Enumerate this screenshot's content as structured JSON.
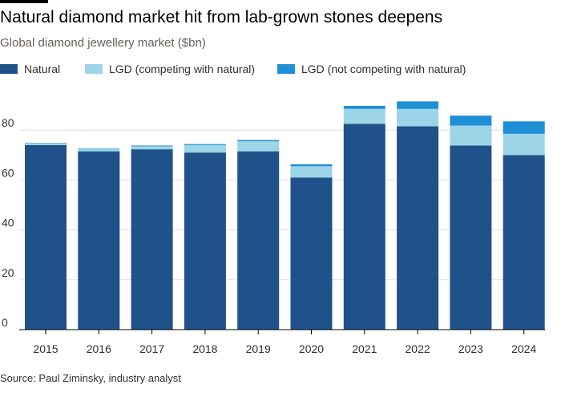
{
  "title": "Natural diamond market hit from lab-grown stones deepens",
  "subtitle": "Global diamond jewellery market ($bn)",
  "source": "Source: Paul Ziminsky, industry analyst",
  "colors": {
    "natural": "#1f5289",
    "lgd_competing": "#9cd4e8",
    "lgd_not_competing": "#1f8fd6",
    "grid": "#e3e0dd",
    "axis": "#000000",
    "tick_text": "#33302e"
  },
  "chart_data": {
    "type": "bar",
    "stacked": true,
    "title": "Natural diamond market hit from lab-grown stones deepens",
    "subtitle": "Global diamond jewellery market ($bn)",
    "xlabel": "",
    "ylabel": "",
    "ylim": [
      0,
      90
    ],
    "yticks": [
      0,
      20,
      40,
      60,
      80
    ],
    "grid": true,
    "legend_position": "top-left",
    "categories": [
      "2015",
      "2016",
      "2017",
      "2018",
      "2019",
      "2020",
      "2021",
      "2022",
      "2023",
      "2024"
    ],
    "series": [
      {
        "name": "Natural",
        "color_key": "natural",
        "values": [
          74,
          71.5,
          72.3,
          71,
          71.5,
          61,
          82.5,
          81.5,
          73.8,
          70
        ]
      },
      {
        "name": "LGD (competing with natural)",
        "color_key": "lgd_competing",
        "values": [
          0.6,
          0.9,
          1.2,
          3,
          4,
          4.5,
          6,
          7,
          8,
          8.5
        ]
      },
      {
        "name": "LGD (not competing with natural)",
        "color_key": "lgd_not_competing",
        "values": [
          0.2,
          0.2,
          0.3,
          0.4,
          0.5,
          0.8,
          1.2,
          3,
          4,
          5
        ]
      }
    ]
  }
}
